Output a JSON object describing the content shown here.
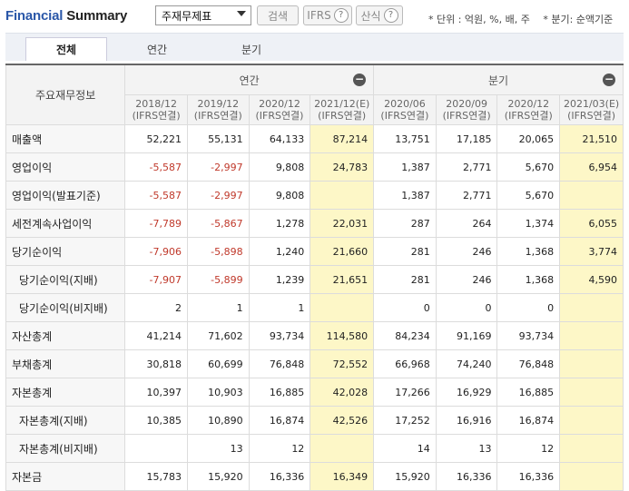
{
  "header": {
    "title_part1": "Financial",
    "title_part2": "Summary",
    "select_value": "주재무제표",
    "search_btn": "검색",
    "ifrs_btn": "IFRS",
    "calc_btn": "산식",
    "unit_note": "* 단위 : 억원, %, 배, 주 　* 분기: 순액기준"
  },
  "tabs": [
    "전체",
    "연간",
    "분기"
  ],
  "table": {
    "corner": "주요재무정보",
    "group_annual": "연간",
    "group_quarter": "분기",
    "columns": [
      {
        "period": "2018/12",
        "basis": "(IFRS연결)",
        "est": false
      },
      {
        "period": "2019/12",
        "basis": "(IFRS연결)",
        "est": false
      },
      {
        "period": "2020/12",
        "basis": "(IFRS연결)",
        "est": false
      },
      {
        "period": "2021/12(E)",
        "basis": "(IFRS연결)",
        "est": true
      },
      {
        "period": "2020/06",
        "basis": "(IFRS연결)",
        "est": false
      },
      {
        "period": "2020/09",
        "basis": "(IFRS연결)",
        "est": false
      },
      {
        "period": "2020/12",
        "basis": "(IFRS연결)",
        "est": false
      },
      {
        "period": "2021/03(E)",
        "basis": "(IFRS연결)",
        "est": true
      }
    ],
    "rows": [
      {
        "label": "매출액",
        "indent": false,
        "values": [
          "52,221",
          "55,131",
          "64,133",
          "87,214",
          "13,751",
          "17,185",
          "20,065",
          "21,510"
        ]
      },
      {
        "label": "영업이익",
        "indent": false,
        "values": [
          "-5,587",
          "-2,997",
          "9,808",
          "24,783",
          "1,387",
          "2,771",
          "5,670",
          "6,954"
        ]
      },
      {
        "label": "영업이익(발표기준)",
        "indent": false,
        "values": [
          "-5,587",
          "-2,997",
          "9,808",
          "",
          "1,387",
          "2,771",
          "5,670",
          ""
        ]
      },
      {
        "label": "세전계속사업이익",
        "indent": false,
        "values": [
          "-7,789",
          "-5,867",
          "1,278",
          "22,031",
          "287",
          "264",
          "1,374",
          "6,055"
        ]
      },
      {
        "label": "당기순이익",
        "indent": false,
        "values": [
          "-7,906",
          "-5,898",
          "1,240",
          "21,660",
          "281",
          "246",
          "1,368",
          "3,774"
        ]
      },
      {
        "label": "당기순이익(지배)",
        "indent": true,
        "values": [
          "-7,907",
          "-5,899",
          "1,239",
          "21,651",
          "281",
          "246",
          "1,368",
          "4,590"
        ]
      },
      {
        "label": "당기순이익(비지배)",
        "indent": true,
        "values": [
          "2",
          "1",
          "1",
          "",
          "0",
          "0",
          "0",
          ""
        ]
      },
      {
        "label": "자산총계",
        "indent": false,
        "values": [
          "41,214",
          "71,602",
          "93,734",
          "114,580",
          "84,234",
          "91,169",
          "93,734",
          ""
        ]
      },
      {
        "label": "부채총계",
        "indent": false,
        "values": [
          "30,818",
          "60,699",
          "76,848",
          "72,552",
          "66,968",
          "74,240",
          "76,848",
          ""
        ]
      },
      {
        "label": "자본총계",
        "indent": false,
        "values": [
          "10,397",
          "10,903",
          "16,885",
          "42,028",
          "17,266",
          "16,929",
          "16,885",
          ""
        ]
      },
      {
        "label": "자본총계(지배)",
        "indent": true,
        "values": [
          "10,385",
          "10,890",
          "16,874",
          "42,526",
          "17,252",
          "16,916",
          "16,874",
          ""
        ]
      },
      {
        "label": "자본총계(비지배)",
        "indent": true,
        "values": [
          "",
          "13",
          "12",
          "",
          "14",
          "13",
          "12",
          ""
        ]
      },
      {
        "label": "자본금",
        "indent": false,
        "values": [
          "15,783",
          "15,920",
          "16,336",
          "16,349",
          "15,920",
          "16,336",
          "16,336",
          ""
        ]
      }
    ]
  }
}
